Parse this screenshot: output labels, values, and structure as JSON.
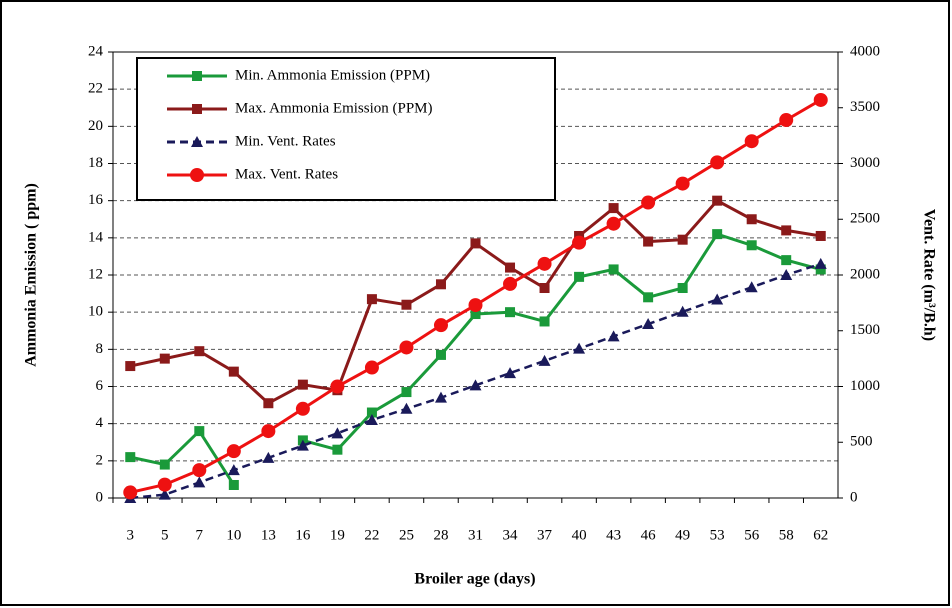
{
  "chart_data": {
    "type": "line",
    "x_label": "Broiler age (days)",
    "y_label": "Ammonia Emission  ( ppm)",
    "y2_label": "Vent. Rate (m³/B.h)",
    "categories": [
      "3",
      "5",
      "7",
      "10",
      "13",
      "16",
      "19",
      "22",
      "25",
      "28",
      "31",
      "34",
      "37",
      "40",
      "43",
      "46",
      "49",
      "53",
      "56",
      "58",
      "62"
    ],
    "ylim": [
      0,
      24
    ],
    "yticks": [
      0,
      2,
      4,
      6,
      8,
      10,
      12,
      14,
      16,
      18,
      20,
      22,
      24
    ],
    "y2lim": [
      0,
      4000
    ],
    "y2ticks": [
      0,
      500,
      1000,
      1500,
      2000,
      2500,
      3000,
      3500,
      4000
    ],
    "grid": true,
    "legend": "upper left",
    "series": [
      {
        "name": "Min. Ammonia Emission (PPM)",
        "color": "#1a9a3a",
        "marker": "square",
        "values": [
          2.2,
          1.8,
          3.6,
          0.7,
          null,
          3.1,
          2.6,
          4.6,
          5.7,
          7.7,
          9.9,
          10.0,
          9.5,
          11.9,
          12.3,
          10.8,
          11.3,
          14.2,
          13.6,
          12.8,
          12.3
        ]
      },
      {
        "name": "Max. Ammonia Emission (PPM)",
        "color": "#8b1a1a",
        "marker": "square",
        "values": [
          7.1,
          7.5,
          7.9,
          6.8,
          5.1,
          6.1,
          5.8,
          10.7,
          10.4,
          11.5,
          13.7,
          12.4,
          11.3,
          14.1,
          15.6,
          13.8,
          13.9,
          16.0,
          15.0,
          14.4,
          14.1
        ]
      },
      {
        "name": "Min. Vent. Rates",
        "color": "#1a1a5a",
        "marker": "triangle",
        "dashed": true,
        "axis": "y2",
        "values": [
          0,
          30,
          140,
          250,
          360,
          470,
          580,
          700,
          800,
          900,
          1010,
          1120,
          1230,
          1340,
          1450,
          1560,
          1670,
          1780,
          1890,
          2000,
          2100
        ]
      },
      {
        "name": "Max. Vent. Rates",
        "color": "#ee1111",
        "marker": "circle",
        "axis": "y2",
        "values": [
          50,
          120,
          250,
          420,
          600,
          800,
          1000,
          1170,
          1350,
          1550,
          1730,
          1920,
          2100,
          2290,
          2460,
          2650,
          2820,
          3010,
          3200,
          3390,
          3570
        ]
      }
    ]
  }
}
